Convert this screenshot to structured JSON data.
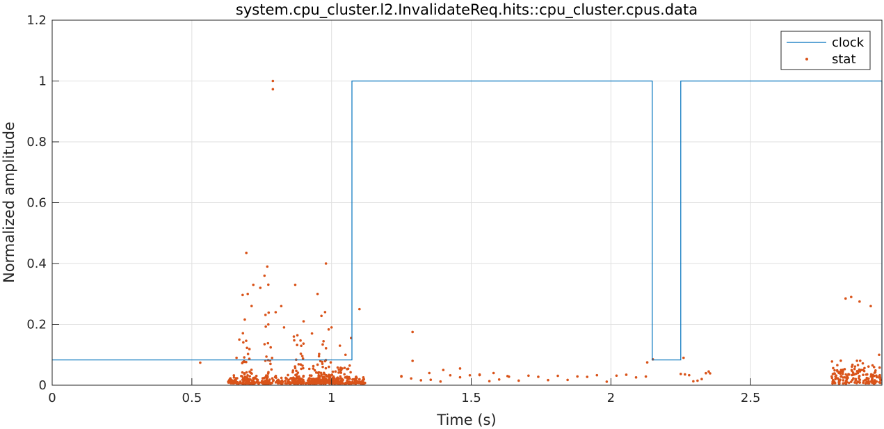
{
  "chart_data": {
    "type": "line+scatter",
    "title": "system.cpu_cluster.l2.InvalidateReq.hits::cpu_cluster.cpus.data",
    "xlabel": "Time (s)",
    "ylabel": "Normalized amplitude",
    "xlim": [
      0,
      2.97
    ],
    "ylim": [
      0,
      1.2
    ],
    "xticks": [
      0,
      0.5,
      1,
      1.5,
      2,
      2.5
    ],
    "xtick_labels": [
      "0",
      "0.5",
      "1",
      "1.5",
      "2",
      "2.5"
    ],
    "yticks": [
      0,
      0.2,
      0.4,
      0.6,
      0.8,
      1,
      1.2
    ],
    "ytick_labels": [
      "0",
      "0.2",
      "0.4",
      "0.6",
      "0.8",
      "1",
      "1.2"
    ],
    "grid": true,
    "legend": {
      "location": "top-right",
      "entries": [
        "clock",
        "stat"
      ]
    },
    "colors": {
      "clock": "#0072BD",
      "stat": "#D95319"
    },
    "series": [
      {
        "name": "clock",
        "style": "step-line",
        "x": [
          0,
          1.073,
          1.073,
          2.148,
          2.148,
          2.25,
          2.25,
          2.97,
          2.97
        ],
        "y": [
          0.083,
          0.083,
          1.0,
          1.0,
          0.083,
          0.083,
          1.0,
          1.0,
          0.0
        ]
      },
      {
        "name": "stat",
        "style": "markers",
        "points": [
          [
            0.53,
            0.074
          ],
          [
            0.79,
            1.0
          ],
          [
            0.79,
            0.973
          ],
          [
            0.695,
            0.435
          ],
          [
            0.745,
            0.32
          ],
          [
            0.83,
            0.19
          ],
          [
            0.82,
            0.26
          ],
          [
            0.95,
            0.3
          ],
          [
            0.98,
            0.4
          ],
          [
            1.07,
            0.155
          ],
          [
            1.1,
            0.25
          ],
          [
            1.29,
            0.175
          ],
          [
            1.29,
            0.08
          ],
          [
            1.25,
            0.03
          ],
          [
            1.35,
            0.04
          ],
          [
            1.4,
            0.05
          ],
          [
            1.46,
            0.055
          ],
          [
            1.53,
            0.035
          ],
          [
            1.58,
            0.04
          ],
          [
            1.63,
            0.03
          ],
          [
            2.13,
            0.075
          ],
          [
            2.15,
            0.085
          ],
          [
            2.26,
            0.09
          ],
          [
            2.35,
            0.045
          ],
          [
            2.84,
            0.285
          ],
          [
            2.86,
            0.29
          ],
          [
            2.89,
            0.275
          ],
          [
            2.93,
            0.26
          ],
          [
            2.96,
            0.1
          ],
          [
            0.66,
            0.09
          ],
          [
            0.67,
            0.15
          ],
          [
            0.7,
            0.3
          ],
          [
            0.72,
            0.33
          ],
          [
            0.76,
            0.36
          ],
          [
            0.77,
            0.39
          ],
          [
            0.8,
            0.24
          ],
          [
            0.87,
            0.33
          ],
          [
            0.9,
            0.21
          ],
          [
            0.93,
            0.17
          ],
          [
            1.0,
            0.19
          ],
          [
            1.03,
            0.13
          ],
          [
            1.05,
            0.1
          ]
        ]
      }
    ]
  }
}
